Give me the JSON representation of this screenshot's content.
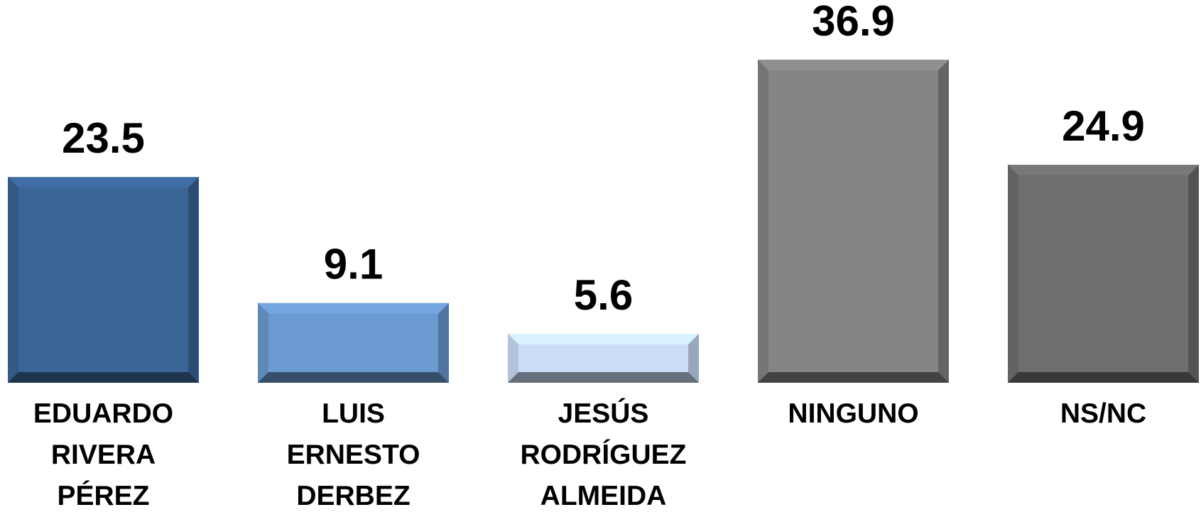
{
  "chart_data": {
    "type": "bar",
    "categories": [
      "EDUARDO RIVERA PÉREZ",
      "LUIS ERNESTO DERBEZ",
      "JESÚS RODRÍGUEZ ALMEIDA",
      "NINGUNO",
      "NS/NC"
    ],
    "values": [
      23.5,
      9.1,
      5.6,
      36.9,
      24.9
    ],
    "colors": [
      "#3b6597",
      "#6b9bd1",
      "#cadff7",
      "#858585",
      "#6f6f6f"
    ],
    "ylim": [
      0,
      40
    ]
  }
}
